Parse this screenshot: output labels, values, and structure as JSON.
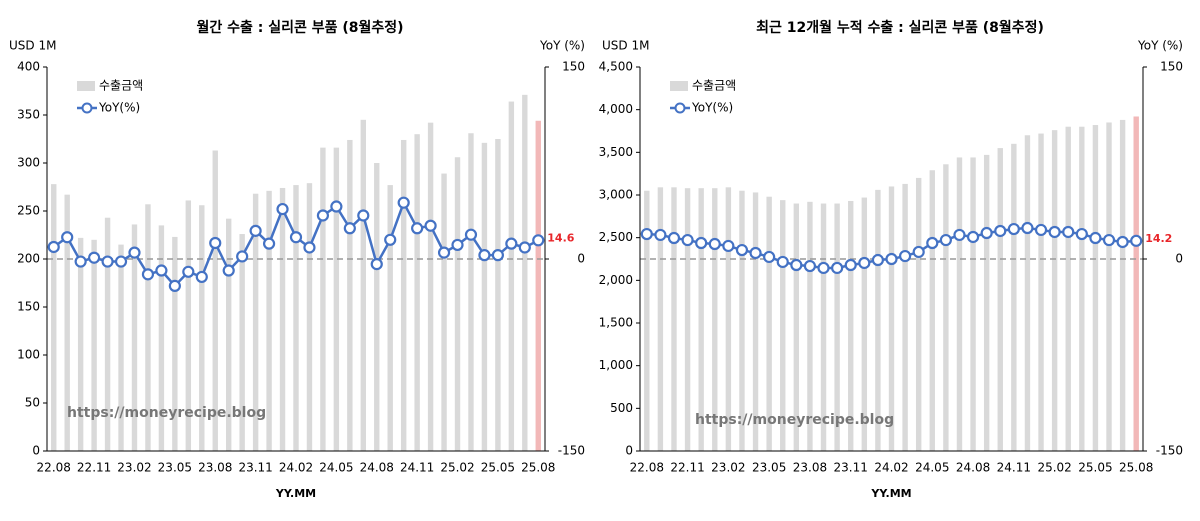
{
  "chart_data": [
    {
      "type": "bar-line",
      "title": "월간 수출 : 실리콘 부품 (8월추정)",
      "y_label": "USD 1M",
      "y2_label": "YoY (%)",
      "x_label": "YY.MM",
      "watermark": "https://moneyrecipe.blog",
      "categories": [
        "22.08",
        null,
        null,
        "22.11",
        null,
        null,
        "23.02",
        null,
        null,
        "23.05",
        null,
        null,
        "23.08",
        null,
        null,
        "23.11",
        null,
        null,
        "24.02",
        null,
        null,
        "24.05",
        null,
        null,
        "24.08",
        null,
        null,
        "24.11",
        null,
        null,
        "25.02",
        null,
        null,
        "25.05",
        null,
        null,
        "25.08"
      ],
      "series": [
        {
          "name": "수출금액",
          "color": "#d9d9d9",
          "highlight_color": "#f2b8b8",
          "values": [
            278,
            267,
            222,
            220,
            243,
            215,
            236,
            257,
            235,
            223,
            261,
            256,
            313,
            242,
            226,
            268,
            271,
            274,
            277,
            279,
            316,
            316,
            324,
            345,
            300,
            277,
            324,
            330,
            342,
            289,
            306,
            331,
            321,
            325,
            364,
            371,
            344
          ]
        },
        {
          "name": "YoY(%)",
          "color": "#4472c4",
          "axis": "y2",
          "label_color": "#e8262a",
          "values": [
            9.4,
            17,
            -2,
            1,
            -2,
            -2,
            5,
            -12,
            -9,
            -21,
            -10,
            -14,
            12.5,
            -9,
            2,
            22,
            12,
            39,
            17,
            9,
            34,
            41,
            24,
            34,
            -4,
            15,
            44,
            24,
            26,
            5,
            11,
            19,
            3,
            3,
            12,
            9,
            14.6
          ]
        }
      ],
      "ylim": [
        0,
        400
      ],
      "yticks": [
        0,
        50,
        100,
        150,
        200,
        250,
        300,
        350,
        400
      ],
      "y2lim": [
        -150,
        150
      ],
      "y2ticks": [
        -150,
        0,
        150
      ]
    },
    {
      "type": "bar-line",
      "title": "최근 12개월 누적 수출 : 실리콘 부품 (8월추정)",
      "y_label": "USD 1M",
      "y2_label": "YoY (%)",
      "x_label": "YY.MM",
      "watermark": "https://moneyrecipe.blog",
      "categories": [
        "22.08",
        null,
        null,
        "22.11",
        null,
        null,
        "23.02",
        null,
        null,
        "23.05",
        null,
        null,
        "23.08",
        null,
        null,
        "23.11",
        null,
        null,
        "24.02",
        null,
        null,
        "24.05",
        null,
        null,
        "24.08",
        null,
        null,
        "24.11",
        null,
        null,
        "25.02",
        null,
        null,
        "25.05",
        null,
        null,
        "25.08"
      ],
      "series": [
        {
          "name": "수출금액",
          "color": "#d9d9d9",
          "highlight_color": "#f2b8b8",
          "values": [
            3050,
            3090,
            3090,
            3080,
            3080,
            3080,
            3090,
            3050,
            3030,
            2980,
            2940,
            2900,
            2920,
            2900,
            2900,
            2930,
            2970,
            3060,
            3100,
            3130,
            3200,
            3290,
            3360,
            3440,
            3440,
            3470,
            3550,
            3600,
            3700,
            3720,
            3760,
            3800,
            3800,
            3820,
            3850,
            3880,
            3920
          ]
        },
        {
          "name": "YoY(%)",
          "color": "#4472c4",
          "axis": "y2",
          "label_color": "#e8262a",
          "values": [
            19.5,
            18.8,
            16.4,
            14.8,
            12.5,
            11.7,
            10.2,
            7,
            4.7,
            1.6,
            -2.3,
            -4.7,
            -5.5,
            -7,
            -7,
            -4.7,
            -3.1,
            -0.8,
            0,
            2.3,
            5.5,
            12.5,
            14.8,
            18.8,
            17.2,
            20.3,
            21.9,
            23.4,
            24.2,
            22.7,
            21.1,
            21.1,
            19.5,
            16.4,
            14.8,
            13.3,
            14.2
          ]
        }
      ],
      "ylim": [
        0,
        4500
      ],
      "yticks": [
        0,
        500,
        {
          "value": 1000,
          "label": "1,000"
        },
        {
          "value": 1500,
          "label": "1,500"
        },
        {
          "value": 2000,
          "label": "2,000"
        },
        {
          "value": 2500,
          "label": "2,500"
        },
        {
          "value": 3000,
          "label": "3,000"
        },
        {
          "value": 3500,
          "label": "3,500"
        },
        {
          "value": 4000,
          "label": "4,000"
        },
        {
          "value": 4500,
          "label": "4,500"
        }
      ],
      "y2lim": [
        -150,
        150
      ],
      "y2ticks": [
        -150,
        0,
        150
      ]
    }
  ]
}
